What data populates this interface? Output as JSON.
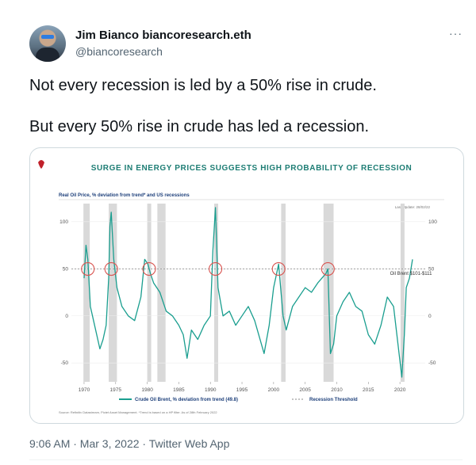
{
  "tweet": {
    "display_name": "Jim Bianco biancoresearch.eth",
    "handle": "@biancoresearch",
    "more_label": "···",
    "text_line1": "Not every recession is led by a 50% rise in crude.",
    "text_line2": "But every 50% rise in crude has led a recession.",
    "timestamp": "9:06 AM · Mar 3, 2022 · Twitter Web App"
  },
  "chart_data": {
    "type": "line",
    "title": "SURGE IN ENERGY PRICES SUGGESTS HIGH PROBABILITY OF RECESSION",
    "subtitle": "Real Oil Price, % deviation from trend* and US recessions",
    "last_update": "Last Update: 28/02/22",
    "annotation": "Oil Brent $101-$111",
    "source_note": "Source: Refinitiv Datastream, Pictet Asset Management. *Trend is based on a HP filter. As of 28th February 2022",
    "xlim": [
      1969,
      2023
    ],
    "ylim": [
      -70,
      115
    ],
    "x_ticks": [
      "1970",
      "1975",
      "1980",
      "1985",
      "1990",
      "1995",
      "2000",
      "2005",
      "2010",
      "2015",
      "2020"
    ],
    "y_ticks": [
      "100",
      "50",
      "0",
      "-50"
    ],
    "threshold": 49.8,
    "legend": [
      {
        "label": "Crude Oil Brent, % deviation from trend (49.8)",
        "color": "#1a9e8f",
        "style": "solid"
      },
      {
        "label": "Recession Threshold",
        "color": "#8a8a8a",
        "style": "dashed"
      }
    ],
    "recessions": [
      [
        1969.9,
        1970.9
      ],
      [
        1973.9,
        1975.2
      ],
      [
        1980.0,
        1980.5
      ],
      [
        1981.6,
        1982.9
      ],
      [
        1990.6,
        1991.2
      ],
      [
        2001.2,
        2001.9
      ],
      [
        2007.9,
        2009.5
      ],
      [
        2020.1,
        2020.4
      ]
    ],
    "circled_peaks": [
      1970.6,
      1974.3,
      1980.3,
      1990.8,
      2000.8,
      2008.6
    ],
    "series": [
      {
        "name": "Crude Oil Brent, % deviation from trend (49.8)",
        "color": "#1a9e8f",
        "x": [
          1970,
          1970.3,
          1970.6,
          1971,
          1971.5,
          1972,
          1972.5,
          1973,
          1973.5,
          1973.9,
          1974.1,
          1974.3,
          1974.7,
          1975.2,
          1976,
          1977,
          1978,
          1979,
          1979.6,
          1980.1,
          1980.5,
          1981,
          1982,
          1983,
          1984,
          1985,
          1985.7,
          1986.3,
          1987,
          1988,
          1989,
          1990,
          1990.4,
          1990.8,
          1991.2,
          1992,
          1993,
          1994,
          1995,
          1996,
          1997,
          1998.5,
          1999.3,
          2000,
          2000.8,
          2001.5,
          2002,
          2003,
          2004,
          2005,
          2006,
          2007,
          2008.3,
          2008.6,
          2009,
          2009.5,
          2010,
          2011,
          2012,
          2013,
          2014,
          2015,
          2016,
          2017,
          2018,
          2019,
          2020.3,
          2020.7,
          2021,
          2021.5,
          2022
        ],
        "values": [
          40,
          75,
          60,
          10,
          -5,
          -20,
          -35,
          -25,
          -10,
          40,
          95,
          110,
          60,
          30,
          10,
          0,
          -5,
          20,
          60,
          55,
          45,
          35,
          25,
          5,
          0,
          -10,
          -20,
          -45,
          -15,
          -25,
          -10,
          0,
          70,
          115,
          30,
          0,
          5,
          -10,
          0,
          10,
          -5,
          -40,
          -10,
          30,
          55,
          0,
          -15,
          10,
          20,
          30,
          25,
          35,
          45,
          50,
          -40,
          -30,
          0,
          15,
          25,
          10,
          5,
          -20,
          -30,
          -10,
          20,
          10,
          -65,
          -20,
          30,
          40,
          60
        ]
      }
    ]
  }
}
